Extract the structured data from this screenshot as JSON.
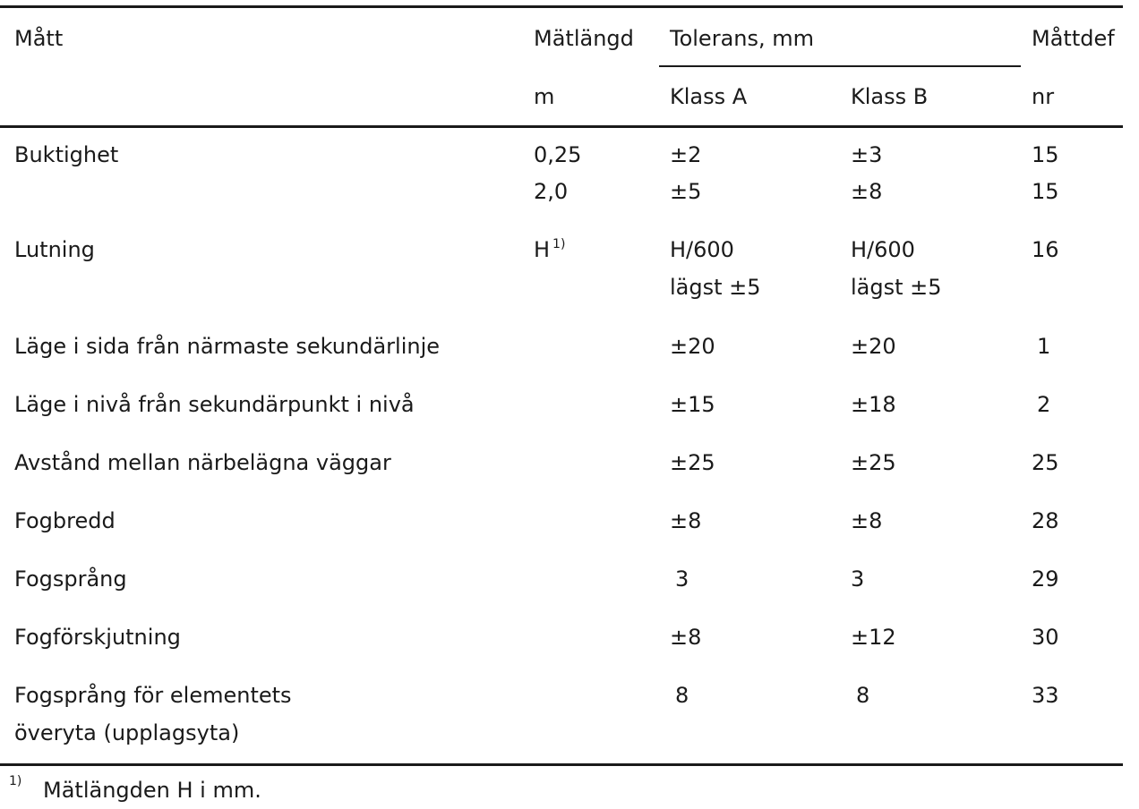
{
  "header": {
    "col_matt": "Mått",
    "col_matlangd": "Mätlängd",
    "col_matlangd_unit": "m",
    "col_tolerans": "Tolerans, mm",
    "col_klass_a": "Klass A",
    "col_klass_b": "Klass B",
    "col_mattdef": "Måttdef",
    "col_mattdef_unit": "nr"
  },
  "rows": [
    {
      "matt": "Buktighet",
      "matlangd": "0,25",
      "klass_a": "±2",
      "klass_b": "±3",
      "nr": "15"
    },
    {
      "matt": "",
      "matlangd": "2,0",
      "klass_a": "±5",
      "klass_b": "±8",
      "nr": "15"
    },
    {
      "matt": "Lutning",
      "matlangd": "H",
      "matlangd_sup": "1)",
      "klass_a": "H/600",
      "klass_a2": "lägst ±5",
      "klass_b": "H/600",
      "klass_b2": "lägst ±5",
      "nr": "16"
    },
    {
      "matt": "Läge i sida från närmaste sekundärlinje",
      "klass_a": "±20",
      "klass_b": "±20",
      "nr": "1"
    },
    {
      "matt": "Läge i nivå från sekundärpunkt i nivå",
      "klass_a": "±15",
      "klass_b": "±18",
      "nr": "2"
    },
    {
      "matt": "Avstånd mellan närbelägna väggar",
      "klass_a": "±25",
      "klass_b": "±25",
      "nr": "25"
    },
    {
      "matt": "Fogbredd",
      "klass_a": "±8",
      "klass_b": "±8",
      "nr": "28"
    },
    {
      "matt": "Fogsprång",
      "klass_a": "3",
      "klass_b": "3",
      "nr": "29"
    },
    {
      "matt": "Fogförskjutning",
      "klass_a": "±8",
      "klass_b": "±12",
      "nr": "30"
    },
    {
      "matt": "Fogsprång för elementets",
      "matt2": "överyta (upplagsyta)",
      "klass_a": "8",
      "klass_b": "8",
      "nr": "33"
    }
  ],
  "footnote": {
    "marker": "1)",
    "text": "Mätlängden H i mm."
  }
}
